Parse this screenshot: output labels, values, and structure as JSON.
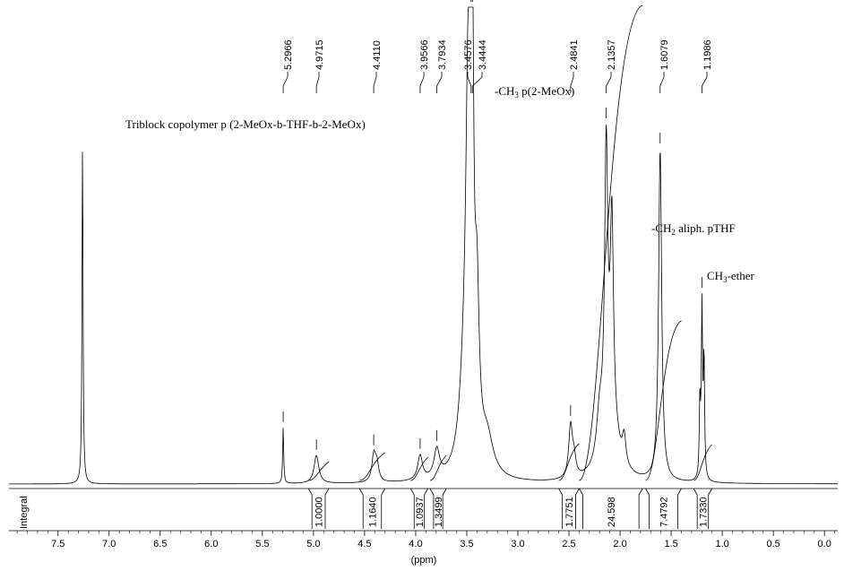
{
  "chart_data": {
    "type": "line",
    "title": "",
    "xlabel": "(ppm)",
    "integral_caption": "Integral",
    "xlim": [
      7.98,
      -0.13
    ],
    "x_ticks": [
      {
        "v": 7.5,
        "label": "7.5"
      },
      {
        "v": 7.0,
        "label": "7.0"
      },
      {
        "v": 6.5,
        "label": "6.5"
      },
      {
        "v": 6.0,
        "label": "6.0"
      },
      {
        "v": 5.5,
        "label": "5.5"
      },
      {
        "v": 5.0,
        "label": "5.0"
      },
      {
        "v": 4.5,
        "label": "4.5"
      },
      {
        "v": 4.0,
        "label": "4.0"
      },
      {
        "v": 3.5,
        "label": "3.5"
      },
      {
        "v": 3.0,
        "label": "3.0"
      },
      {
        "v": 2.5,
        "label": "2.5"
      },
      {
        "v": 2.0,
        "label": "2.0"
      },
      {
        "v": 1.5,
        "label": "1.5"
      },
      {
        "v": 1.0,
        "label": "1.0"
      },
      {
        "v": 0.5,
        "label": "0.5"
      },
      {
        "v": 0.0,
        "label": "0.0"
      }
    ],
    "peak_labels": [
      {
        "ppm": 5.2966,
        "label": "5.2966"
      },
      {
        "ppm": 4.9715,
        "label": "4.9715"
      },
      {
        "ppm": 4.411,
        "label": "4.4110"
      },
      {
        "ppm": 3.9566,
        "label": "3.9566"
      },
      {
        "ppm": 3.7934,
        "label": "3.7934"
      },
      {
        "ppm": 3.4576,
        "label": "3.4576"
      },
      {
        "ppm": 3.4444,
        "label": "3.4444"
      },
      {
        "ppm": 2.4841,
        "label": "2.4841"
      },
      {
        "ppm": 2.1357,
        "label": "2.1357"
      },
      {
        "ppm": 1.6079,
        "label": "1.6079"
      },
      {
        "ppm": 1.1986,
        "label": "1.1986"
      }
    ],
    "integrals": [
      {
        "from": 5.05,
        "to": 4.85,
        "value": "1.0000"
      },
      {
        "from": 4.55,
        "to": 4.3,
        "value": "1.1640"
      },
      {
        "from": 4.05,
        "to": 3.88,
        "value": "1.0937"
      },
      {
        "from": 3.86,
        "to": 3.7,
        "value": "1.3499"
      },
      {
        "from": 2.6,
        "to": 2.4,
        "value": "1.7751"
      },
      {
        "from": 2.4,
        "to": 1.78,
        "value": "24.598"
      },
      {
        "from": 1.75,
        "to": 1.4,
        "value": "7.4792"
      },
      {
        "from": 1.28,
        "to": 1.1,
        "value": "1.7330"
      }
    ],
    "annotations": {
      "title_note": "Triblock copolymer p (2-MeOx-b-THF-b-2-MeOx)",
      "ch3_pre": "-CH",
      "ch3_sub": "3",
      "ch3_post": " p(2-MeOx)",
      "ch2_pre": "-CH",
      "ch2_sub": "2",
      "ch2_post": " aliph. pTHF",
      "ether_pre": "CH",
      "ether_sub": "3",
      "ether_post": "-ether"
    },
    "peaks": [
      {
        "ppm": 7.26,
        "h": 0.98,
        "w": 0.006
      },
      {
        "ppm": 5.2966,
        "h": 0.16,
        "w": 0.006
      },
      {
        "ppm": 4.9715,
        "h": 0.08,
        "w": 0.028
      },
      {
        "ppm": 4.41,
        "h": 0.075,
        "w": 0.022
      },
      {
        "ppm": 4.38,
        "h": 0.05,
        "w": 0.022
      },
      {
        "ppm": 3.9566,
        "h": 0.07,
        "w": 0.028
      },
      {
        "ppm": 3.7934,
        "h": 0.08,
        "w": 0.032
      },
      {
        "ppm": 3.4576,
        "h": 1.1,
        "w": 0.022
      },
      {
        "ppm": 3.4444,
        "h": 0.65,
        "w": 0.01
      },
      {
        "ppm": 3.49,
        "h": 0.7,
        "w": 0.025
      },
      {
        "ppm": 3.4,
        "h": 0.4,
        "w": 0.025
      },
      {
        "ppm": 3.52,
        "h": 0.25,
        "w": 0.06
      },
      {
        "ppm": 3.3,
        "h": 0.1,
        "w": 0.07
      },
      {
        "ppm": 2.4841,
        "h": 0.15,
        "w": 0.022
      },
      {
        "ppm": 2.45,
        "h": 0.05,
        "w": 0.02
      },
      {
        "ppm": 2.1357,
        "h": 0.78,
        "w": 0.018
      },
      {
        "ppm": 2.08,
        "h": 0.55,
        "w": 0.018
      },
      {
        "ppm": 2.2,
        "h": 0.12,
        "w": 0.035
      },
      {
        "ppm": 2.1,
        "h": 0.2,
        "w": 0.08
      },
      {
        "ppm": 1.96,
        "h": 0.08,
        "w": 0.02
      },
      {
        "ppm": 1.6079,
        "h": 0.95,
        "w": 0.018
      },
      {
        "ppm": 1.1986,
        "h": 0.48,
        "w": 0.007
      },
      {
        "ppm": 1.1786,
        "h": 0.34,
        "w": 0.007
      },
      {
        "ppm": 1.2186,
        "h": 0.22,
        "w": 0.007
      }
    ]
  }
}
